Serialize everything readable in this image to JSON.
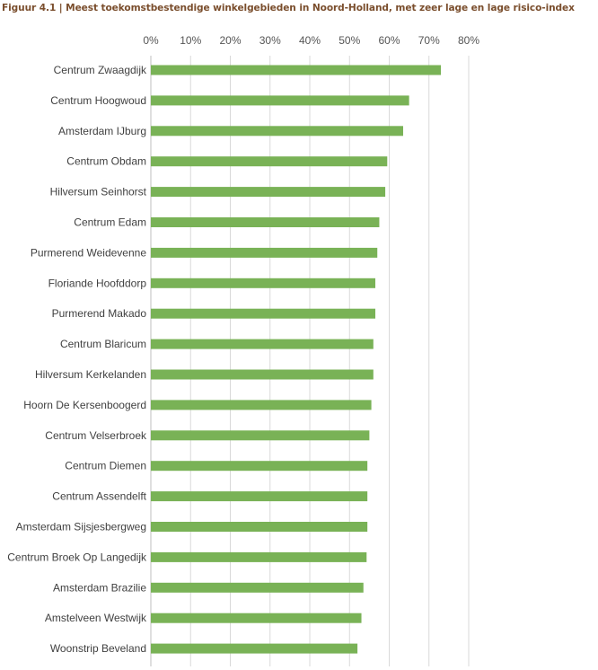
{
  "title": "Figuur 4.1 | Meest toekomstbestendige winkelgebieden in Noord-Holland, met zeer lage en lage risico-index",
  "colors": {
    "bar": "#79b256",
    "grid": "#d9d9d9",
    "title": "#7a4e2d"
  },
  "chart_data": {
    "type": "bar",
    "orientation": "horizontal",
    "categories": [
      "Centrum Zwaagdijk",
      "Centrum Hoogwoud",
      "Amsterdam IJburg",
      "Centrum Obdam",
      "Hilversum Seinhorst",
      "Centrum Edam",
      "Purmerend Weidevenne",
      "Floriande Hoofddorp",
      "Purmerend Makado",
      "Centrum Blaricum",
      "Hilversum Kerkelanden",
      "Hoorn De Kersenboogerd",
      "Centrum Velserbroek",
      "Centrum Diemen",
      "Centrum Assendelft",
      "Amsterdam Sijsjesbergweg",
      "Centrum Broek Op Langedijk",
      "Amsterdam Brazilie",
      "Amstelveen Westwijk",
      "Woonstrip Beveland"
    ],
    "values": [
      73,
      65,
      63.5,
      59.5,
      59,
      57.5,
      57,
      56.5,
      56.5,
      56,
      56,
      55.5,
      55,
      54.5,
      54.5,
      54.5,
      54.3,
      53.5,
      53,
      52
    ],
    "xlim": [
      0,
      80
    ],
    "ticks": [
      "0%",
      "10%",
      "20%",
      "30%",
      "40%",
      "50%",
      "60%",
      "70%",
      "80%"
    ],
    "tick_values": [
      0,
      10,
      20,
      30,
      40,
      50,
      60,
      70,
      80
    ],
    "axis_position": "top",
    "grid": true,
    "xlabel": "",
    "ylabel": ""
  }
}
